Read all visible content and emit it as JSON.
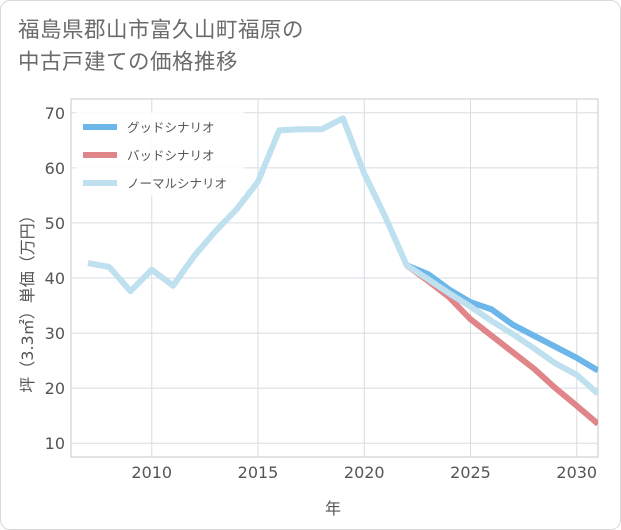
{
  "title_line1": "福島県郡山市富久山町福原の",
  "title_line2": "中古戸建ての価格推移",
  "chart_data": {
    "type": "line",
    "xlabel": "年",
    "ylabel": "坪（3.3㎡）単価（万円）",
    "xlim": [
      2006.2,
      2031
    ],
    "ylim": [
      7.5,
      72.5
    ],
    "xticks": [
      2010,
      2015,
      2020,
      2025,
      2030
    ],
    "yticks": [
      10,
      20,
      30,
      40,
      50,
      60,
      70
    ],
    "grid": true,
    "legend_position": "top-left",
    "series": [
      {
        "name": "グッドシナリオ",
        "color": "#6cb6ea",
        "x": [
          2022,
          2023,
          2024,
          2025,
          2026,
          2027,
          2028,
          2029,
          2030,
          2031
        ],
        "y": [
          42.3,
          40.7,
          37.9,
          35.6,
          34.3,
          31.5,
          29.5,
          27.5,
          25.5,
          23.2
        ]
      },
      {
        "name": "バッドシナリオ",
        "color": "#e0868b",
        "x": [
          2022,
          2023,
          2024,
          2025,
          2026,
          2027,
          2028,
          2029,
          2030,
          2031
        ],
        "y": [
          42.3,
          39.5,
          36.5,
          32.5,
          29.5,
          26.5,
          23.5,
          20.0,
          16.8,
          13.5
        ]
      },
      {
        "name": "ノーマルシナリオ",
        "color": "#bfe0ef",
        "x": [
          2007,
          2008,
          2009,
          2010,
          2011,
          2012,
          2013,
          2014,
          2015,
          2016,
          2017,
          2018,
          2019,
          2020,
          2021,
          2022,
          2023,
          2024,
          2025,
          2026,
          2027,
          2028,
          2029,
          2030,
          2031
        ],
        "y": [
          42.7,
          42.0,
          37.6,
          41.5,
          38.6,
          44.0,
          48.5,
          52.5,
          57.5,
          66.8,
          67.0,
          67.0,
          69.0,
          59.0,
          51.0,
          42.3,
          39.8,
          37.2,
          34.8,
          32.2,
          29.8,
          27.2,
          24.5,
          22.4,
          19.0
        ]
      }
    ]
  }
}
